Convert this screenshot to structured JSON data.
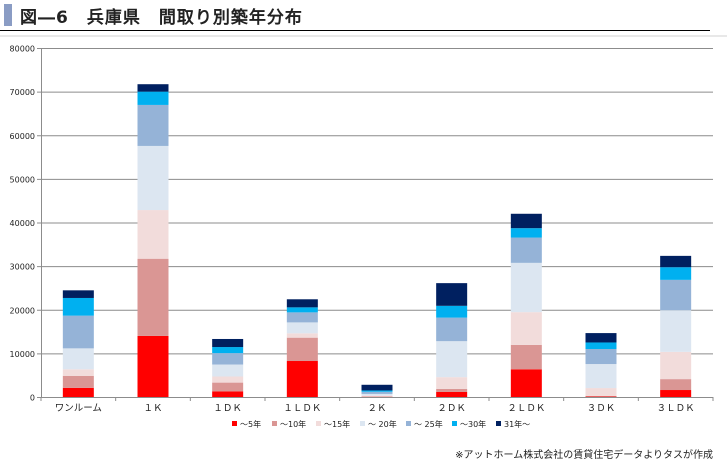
{
  "header": {
    "title": "図―6　兵庫県　間取り別築年分布"
  },
  "source_note": "※アットホーム株式会社の賃貸住宅データよりタスが作成",
  "colors": {
    "~5年": "#ff0000",
    "~10年": "#da9694",
    "~15年": "#f2dcdb",
    "~20年": "#dce6f1",
    "~25年": "#95b3d7",
    "~30年": "#00b0f0",
    "31年~": "#002060"
  },
  "chart_data": {
    "type": "bar",
    "stacked": true,
    "title": "図―6　兵庫県　間取り別築年分布",
    "xlabel": "",
    "ylabel": "",
    "ylim": [
      0,
      80000
    ],
    "yticks": [
      0,
      10000,
      20000,
      30000,
      40000,
      50000,
      60000,
      70000,
      80000
    ],
    "ytick_labels": [
      "0",
      "10000",
      "20000",
      "30000",
      "40000",
      "50000",
      "60000",
      "70000",
      "80000"
    ],
    "grid": true,
    "legend_position": "bottom",
    "categories": [
      "ワンルーム",
      "１Ｋ",
      "１ＤＫ",
      "１ＬＤＫ",
      "２Ｋ",
      "２ＤＫ",
      "２ＬＤＫ",
      "３ＤＫ",
      "３ＬＤＫ"
    ],
    "series": [
      {
        "name": "~5年",
        "legend_label": "～5年",
        "color": "#ff0000",
        "values": [
          2100,
          14000,
          1300,
          8250,
          50,
          1150,
          6350,
          100,
          1600
        ]
      },
      {
        "name": "~10年",
        "legend_label": "～10年",
        "color": "#da9694",
        "values": [
          2750,
          17700,
          2000,
          5350,
          100,
          700,
          5600,
          150,
          2500
        ]
      },
      {
        "name": "~15年",
        "legend_label": "～15年",
        "color": "#f2dcdb",
        "values": [
          1500,
          11150,
          1400,
          1000,
          150,
          2700,
          7500,
          1800,
          6250
        ]
      },
      {
        "name": "~20年",
        "legend_label": "～ 20年",
        "color": "#dce6f1",
        "values": [
          4800,
          14700,
          2750,
          2500,
          400,
          8250,
          11300,
          5500,
          9550
        ]
      },
      {
        "name": "~25年",
        "legend_label": "～ 25年",
        "color": "#95b3d7",
        "values": [
          7500,
          9400,
          2600,
          2300,
          500,
          5400,
          5800,
          3450,
          6950
        ]
      },
      {
        "name": "~30年",
        "legend_label": "～30年",
        "color": "#00b0f0",
        "values": [
          4050,
          3050,
          1400,
          1150,
          300,
          2700,
          2150,
          1500,
          2900
        ]
      },
      {
        "name": "31年~",
        "legend_label": "31年～",
        "color": "#002060",
        "values": [
          1750,
          1700,
          1850,
          1850,
          1300,
          5200,
          3300,
          2150,
          2600
        ]
      }
    ]
  }
}
